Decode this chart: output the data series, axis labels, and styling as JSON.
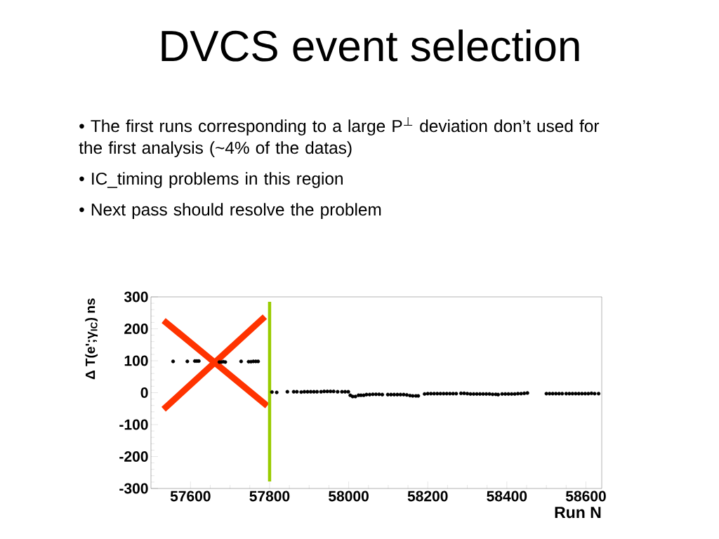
{
  "chart_data": {
    "type": "scatter",
    "title": "DVCS event selection",
    "annotations": [
      "• The first runs corresponding to a large P$^{⊥}$ deviation don’t used for the first analysis (~4% of the datas)",
      "• IC_timing problems in this region",
      "• Next pass should resolve the problem"
    ],
    "xlabel": "Run N",
    "ylabel": "Δ T(e';γ$_{IC}$) ns",
    "series": [
      {
        "color": "#000000",
        "marker": "circle",
        "x": [
          57556,
          57592,
          57611,
          57616,
          57621,
          57673,
          57678,
          57683,
          57688,
          57728,
          57747,
          57753,
          57759,
          57765,
          57771,
          57806,
          57818,
          57845,
          57861,
          57869,
          57880,
          57888,
          57896,
          57904,
          57912,
          57920,
          57930,
          57938,
          57946,
          57954,
          57962,
          57972,
          57983,
          57991,
          57999,
          58004,
          58010,
          58017,
          58025,
          58031,
          58038,
          58045,
          58053,
          58061,
          58069,
          58077,
          58085,
          58099,
          58107,
          58115,
          58123,
          58131,
          58139,
          58147,
          58155,
          58162,
          58170,
          58176,
          58192,
          58200,
          58208,
          58216,
          58224,
          58232,
          58240,
          58248,
          58256,
          58264,
          58272,
          58284,
          58292,
          58300,
          58308,
          58316,
          58324,
          58332,
          58340,
          58348,
          58356,
          58364,
          58372,
          58378,
          58388,
          58396,
          58404,
          58412,
          58420,
          58428,
          58436,
          58444,
          58452,
          58500,
          58508,
          58516,
          58524,
          58532,
          58540,
          58550,
          58558,
          58566,
          58574,
          58582,
          58590,
          58598,
          58606,
          58614,
          58622,
          58632
        ],
        "values": [
          98,
          98,
          99,
          99,
          99,
          96,
          96,
          97,
          96,
          98,
          97,
          97,
          98,
          98,
          98,
          2,
          1,
          3,
          3,
          3,
          2,
          3,
          3,
          3,
          3,
          3,
          3,
          4,
          4,
          4,
          4,
          3,
          3,
          3,
          3,
          -8,
          -12,
          -12,
          -8,
          -8,
          -8,
          -6,
          -6,
          -5,
          -5,
          -5,
          -6,
          -6,
          -6,
          -6,
          -6,
          -6,
          -6,
          -7,
          -9,
          -10,
          -10,
          -10,
          -4,
          -3,
          -3,
          -3,
          -3,
          -3,
          -3,
          -3,
          -3,
          -3,
          -3,
          -2,
          -2,
          -3,
          -4,
          -4,
          -4,
          -4,
          -4,
          -4,
          -4,
          -5,
          -5,
          -6,
          -4,
          -4,
          -4,
          -4,
          -4,
          -3,
          -3,
          -2,
          -1,
          -3,
          -3,
          -3,
          -3,
          -3,
          -3,
          -3,
          -3,
          -3,
          -3,
          -3,
          -3,
          -3,
          -3,
          -2,
          -3,
          -3
        ]
      },
      {
        "type": "line",
        "color": "#ff3300",
        "x": [
          57532,
          57794
        ],
        "values": [
          226,
          -41
        ]
      },
      {
        "type": "line",
        "color": "#ff3300",
        "x": [
          57532,
          57788
        ],
        "values": [
          -52,
          238
        ]
      }
    ],
    "xlim": [
      57500,
      58640
    ],
    "ylim": [
      -300,
      300
    ],
    "xticks": [
      57600,
      57800,
      58000,
      58200,
      58400,
      58600
    ],
    "yticks": [
      -300,
      -200,
      -100,
      0,
      100,
      200,
      300
    ],
    "ref_lines": [
      {
        "axis": "x",
        "value": 57800,
        "color": "#99cc00"
      }
    ]
  }
}
